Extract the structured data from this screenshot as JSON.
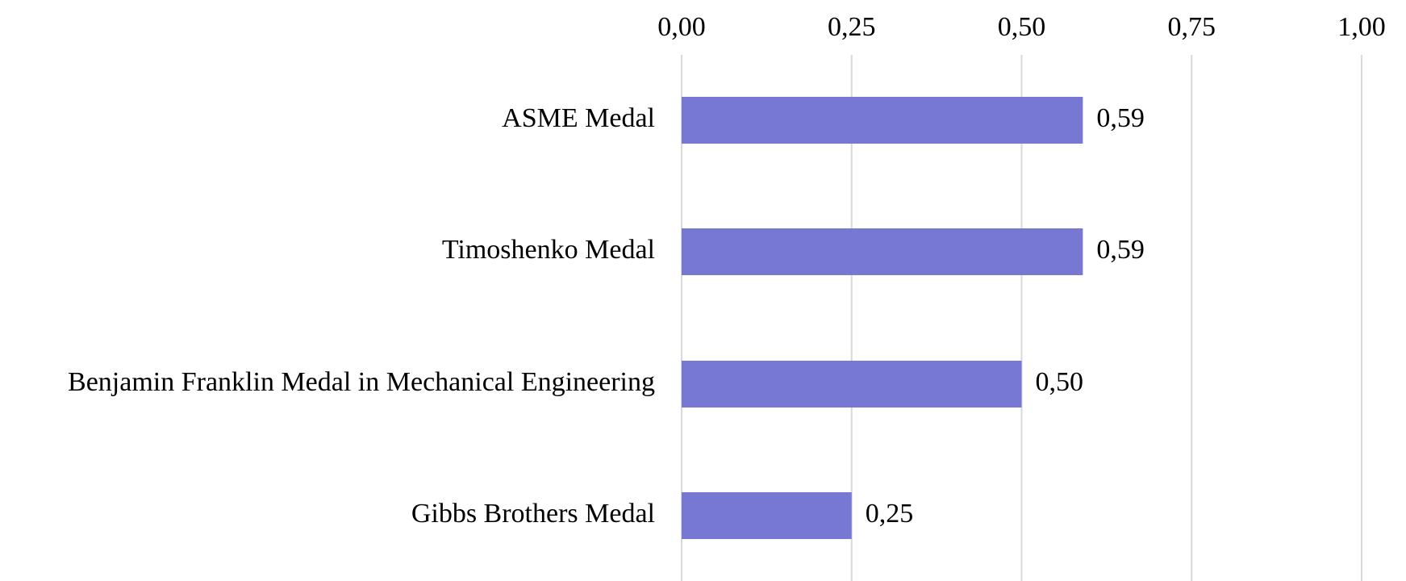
{
  "chart_data": {
    "type": "bar",
    "orientation": "horizontal",
    "categories": [
      "ASME Medal",
      "Timoshenko Medal",
      "Benjamin Franklin Medal in Mechanical Engineering",
      "Gibbs Brothers Medal"
    ],
    "values": [
      0.59,
      0.59,
      0.5,
      0.25
    ],
    "value_labels": [
      "0,59",
      "0,59",
      "0,50",
      "0,25"
    ],
    "xlim": [
      0,
      1
    ],
    "x_ticks": [
      0,
      0.25,
      0.5,
      0.75,
      1
    ],
    "x_tick_labels": [
      "0,00",
      "0,25",
      "0,50",
      "0,75",
      "1,00"
    ],
    "x_axis_position": "top",
    "grid": true,
    "legend": false,
    "title": "",
    "xlabel": "",
    "ylabel": "",
    "colors": {
      "bar": "#7777d4",
      "gridline": "#d9d9d9",
      "text": "#000000"
    }
  }
}
